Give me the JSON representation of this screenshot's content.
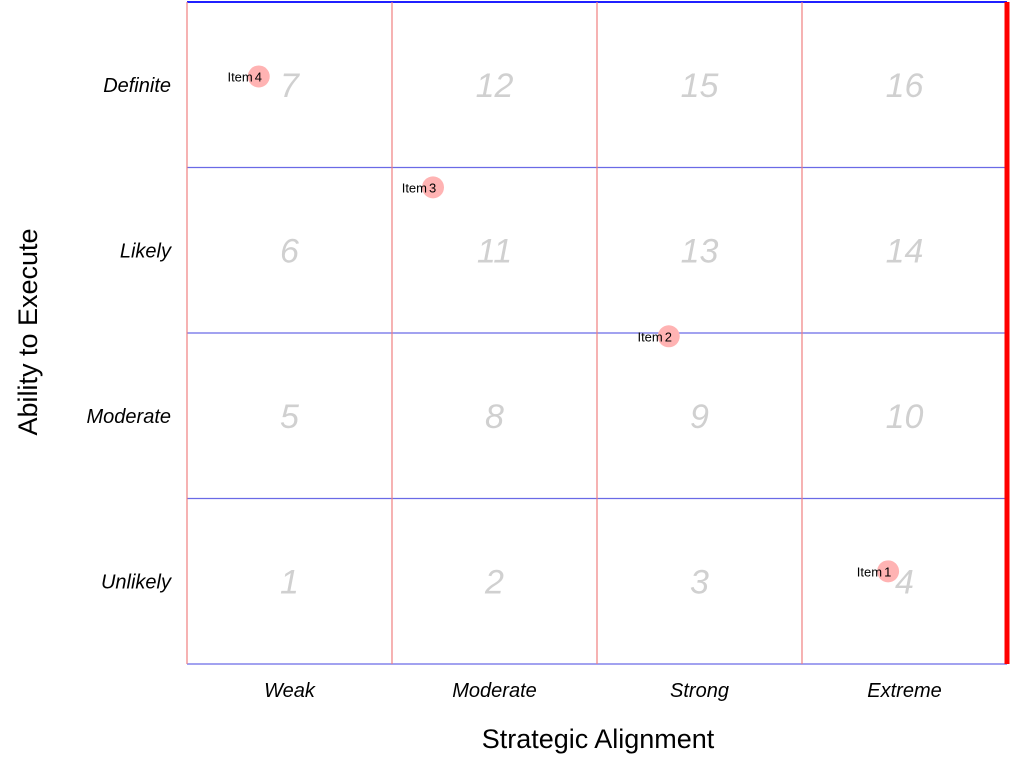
{
  "chart_data": {
    "type": "scatter",
    "xlabel": "Strategic Alignment",
    "ylabel": "Ability to Execute",
    "x_categories": [
      "Weak",
      "Moderate",
      "Strong",
      "Extreme"
    ],
    "y_categories": [
      "Unlikely",
      "Moderate",
      "Likely",
      "Definite"
    ],
    "cell_scores": [
      [
        "1",
        "2",
        "3",
        "4"
      ],
      [
        "5",
        "8",
        "9",
        "10"
      ],
      [
        "6",
        "11",
        "13",
        "14"
      ],
      [
        "7",
        "12",
        "15",
        "16"
      ]
    ],
    "xlim": [
      0,
      4
    ],
    "ylim": [
      0,
      4
    ],
    "points": [
      {
        "label": "Item",
        "number": "1",
        "x": 3.42,
        "y": 0.56
      },
      {
        "label": "Item",
        "number": "2",
        "x": 2.35,
        "y": 1.98
      },
      {
        "label": "Item",
        "number": "3",
        "x": 1.2,
        "y": 2.88
      },
      {
        "label": "Item",
        "number": "4",
        "x": 0.35,
        "y": 3.55
      }
    ],
    "colors": {
      "vertical_grid": "#f08080",
      "horizontal_grid": "#6a6ae6",
      "frame_top": "#2020ff",
      "frame_right": "#ff0000",
      "point_fill": "#ffb3b3",
      "score_text": "#d0d0d0"
    },
    "grid": true,
    "legend": "none"
  }
}
